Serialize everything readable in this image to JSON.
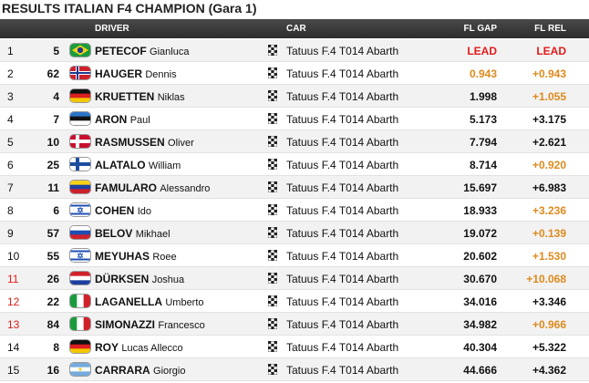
{
  "title": "RESULTS ITALIAN F4 CHAMPION (Gara 1)",
  "header": {
    "driver": "DRIVER",
    "car": "CAR",
    "gap": "FL GAP",
    "rel": "FL REL"
  },
  "colors": {
    "default": "#111111",
    "red": "#e31b1b",
    "orange": "#de8a1c"
  },
  "rows": [
    {
      "pos": "1",
      "num": "5",
      "last": "PETECOF",
      "first": "Gianluca",
      "car": "Tatuus F.4 T014 Abarth",
      "gap": "LEAD",
      "rel": "LEAD",
      "pos_color": "default",
      "gap_color": "red",
      "rel_color": "red"
    },
    {
      "pos": "2",
      "num": "62",
      "last": "HAUGER",
      "first": "Dennis",
      "car": "Tatuus F.4 T014 Abarth",
      "gap": "0.943",
      "rel": "+0.943",
      "pos_color": "default",
      "gap_color": "orange",
      "rel_color": "orange"
    },
    {
      "pos": "3",
      "num": "4",
      "last": "KRUETTEN",
      "first": "Niklas",
      "car": "Tatuus F.4 T014 Abarth",
      "gap": "1.998",
      "rel": "+1.055",
      "pos_color": "default",
      "gap_color": "default",
      "rel_color": "orange"
    },
    {
      "pos": "4",
      "num": "7",
      "last": "ARON",
      "first": "Paul",
      "car": "Tatuus F.4 T014 Abarth",
      "gap": "5.173",
      "rel": "+3.175",
      "pos_color": "default",
      "gap_color": "default",
      "rel_color": "default"
    },
    {
      "pos": "5",
      "num": "10",
      "last": "RASMUSSEN",
      "first": "Oliver",
      "car": "Tatuus F.4 T014 Abarth",
      "gap": "7.794",
      "rel": "+2.621",
      "pos_color": "default",
      "gap_color": "default",
      "rel_color": "default"
    },
    {
      "pos": "6",
      "num": "25",
      "last": "ALATALO",
      "first": "William",
      "car": "Tatuus F.4 T014 Abarth",
      "gap": "8.714",
      "rel": "+0.920",
      "pos_color": "default",
      "gap_color": "default",
      "rel_color": "orange"
    },
    {
      "pos": "7",
      "num": "11",
      "last": "FAMULARO",
      "first": "Alessandro",
      "car": "Tatuus F.4 T014 Abarth",
      "gap": "15.697",
      "rel": "+6.983",
      "pos_color": "default",
      "gap_color": "default",
      "rel_color": "default"
    },
    {
      "pos": "8",
      "num": "6",
      "last": "COHEN",
      "first": "Ido",
      "car": "Tatuus F.4 T014 Abarth",
      "gap": "18.933",
      "rel": "+3.236",
      "pos_color": "default",
      "gap_color": "default",
      "rel_color": "orange"
    },
    {
      "pos": "9",
      "num": "57",
      "last": "BELOV",
      "first": "Mikhael",
      "car": "Tatuus F.4 T014 Abarth",
      "gap": "19.072",
      "rel": "+0.139",
      "pos_color": "default",
      "gap_color": "default",
      "rel_color": "orange"
    },
    {
      "pos": "10",
      "num": "55",
      "last": "MEYUHAS",
      "first": "Roee",
      "car": "Tatuus F.4 T014 Abarth",
      "gap": "20.602",
      "rel": "+1.530",
      "pos_color": "default",
      "gap_color": "default",
      "rel_color": "orange"
    },
    {
      "pos": "11",
      "num": "26",
      "last": "DÜRKSEN",
      "first": "Joshua",
      "car": "Tatuus F.4 T014 Abarth",
      "gap": "30.670",
      "rel": "+10.068",
      "pos_color": "red",
      "gap_color": "default",
      "rel_color": "orange"
    },
    {
      "pos": "12",
      "num": "22",
      "last": "LAGANELLA",
      "first": "Umberto",
      "car": "Tatuus F.4 T014 Abarth",
      "gap": "34.016",
      "rel": "+3.346",
      "pos_color": "red",
      "gap_color": "default",
      "rel_color": "default"
    },
    {
      "pos": "13",
      "num": "84",
      "last": "SIMONAZZI",
      "first": "Francesco",
      "car": "Tatuus F.4 T014 Abarth",
      "gap": "34.982",
      "rel": "+0.966",
      "pos_color": "red",
      "gap_color": "default",
      "rel_color": "orange"
    },
    {
      "pos": "14",
      "num": "8",
      "last": "ROY",
      "first": "Lucas Allecco",
      "car": "Tatuus F.4 T014 Abarth",
      "gap": "40.304",
      "rel": "+5.322",
      "pos_color": "default",
      "gap_color": "default",
      "rel_color": "default"
    },
    {
      "pos": "15",
      "num": "16",
      "last": "CARRARA",
      "first": "Giorgio",
      "car": "Tatuus F.4 T014 Abarth",
      "gap": "44.666",
      "rel": "+4.362",
      "pos_color": "default",
      "gap_color": "default",
      "rel_color": "default"
    }
  ]
}
